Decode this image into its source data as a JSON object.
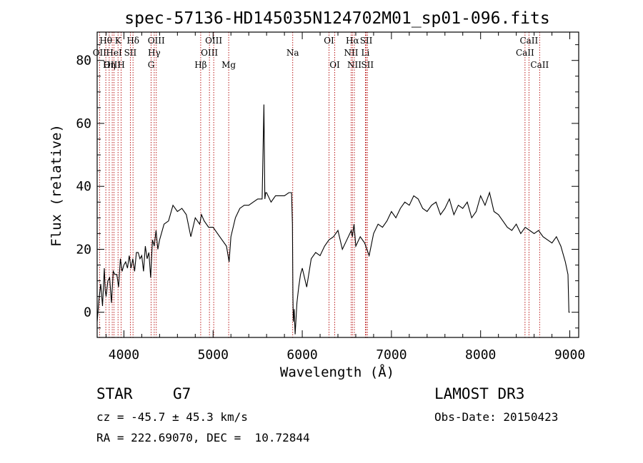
{
  "chart_data": {
    "type": "line",
    "title": "spec-57136-HD145035N124702M01_sp01-096.fits",
    "xlabel": "Wavelength (Å)",
    "ylabel": "Flux (relative)",
    "xlim": [
      3700,
      9100
    ],
    "ylim": [
      -8,
      89
    ],
    "x_ticks": [
      4000,
      5000,
      6000,
      7000,
      8000,
      9000
    ],
    "y_ticks": [
      0,
      20,
      40,
      60,
      80
    ],
    "series": [
      {
        "name": "spectrum",
        "x": [
          3700,
          3720,
          3740,
          3760,
          3780,
          3790,
          3800,
          3820,
          3840,
          3860,
          3880,
          3900,
          3920,
          3940,
          3960,
          3980,
          4000,
          4020,
          4040,
          4060,
          4080,
          4100,
          4120,
          4140,
          4160,
          4180,
          4200,
          4220,
          4240,
          4260,
          4280,
          4300,
          4320,
          4340,
          4360,
          4380,
          4400,
          4450,
          4500,
          4550,
          4600,
          4650,
          4700,
          4750,
          4800,
          4850,
          4870,
          4900,
          4950,
          5000,
          5050,
          5100,
          5150,
          5180,
          5200,
          5250,
          5300,
          5350,
          5400,
          5450,
          5500,
          5550,
          5570,
          5580,
          5590,
          5600,
          5650,
          5700,
          5750,
          5800,
          5850,
          5880,
          5890,
          5895,
          5900,
          5910,
          5920,
          5940,
          5960,
          5980,
          6000,
          6050,
          6100,
          6150,
          6200,
          6250,
          6300,
          6350,
          6400,
          6450,
          6500,
          6550,
          6563,
          6580,
          6600,
          6650,
          6700,
          6750,
          6800,
          6850,
          6900,
          6950,
          7000,
          7050,
          7100,
          7150,
          7200,
          7250,
          7300,
          7350,
          7400,
          7450,
          7500,
          7550,
          7600,
          7650,
          7700,
          7750,
          7800,
          7850,
          7900,
          7950,
          8000,
          8050,
          8100,
          8150,
          8200,
          8250,
          8300,
          8350,
          8400,
          8450,
          8500,
          8550,
          8600,
          8650,
          8700,
          8750,
          8800,
          8850,
          8900,
          8950,
          8980,
          8990,
          9000
        ],
        "y": [
          -3,
          4,
          9,
          2,
          14,
          7,
          5,
          10,
          11,
          3,
          13,
          12,
          12,
          8,
          17,
          13,
          15,
          16,
          14,
          18,
          14,
          17,
          13,
          19,
          19,
          17,
          18,
          13,
          21,
          17,
          19,
          11,
          23,
          21,
          26,
          20,
          23,
          28,
          29,
          34,
          32,
          33,
          31,
          24,
          30,
          28,
          31,
          29,
          27,
          27,
          25,
          23,
          21,
          16,
          24,
          30,
          33,
          34,
          34,
          35,
          36,
          36,
          66,
          36,
          38,
          38,
          35,
          37,
          37,
          37,
          38,
          38,
          28,
          5,
          -3,
          1,
          -7,
          3,
          8,
          12,
          14,
          8,
          17,
          19,
          18,
          21,
          23,
          24,
          26,
          20,
          23,
          26,
          24,
          28,
          21,
          24,
          22,
          18,
          25,
          28,
          27,
          29,
          32,
          30,
          33,
          35,
          34,
          37,
          36,
          33,
          32,
          34,
          35,
          31,
          33,
          36,
          31,
          34,
          33,
          35,
          30,
          32,
          37,
          34,
          38,
          32,
          31,
          29,
          27,
          26,
          28,
          25,
          27,
          26,
          25,
          26,
          24,
          23,
          22,
          24,
          21,
          16,
          12,
          0,
          0
        ]
      }
    ],
    "emission_lines": [
      {
        "label": "Hθ",
        "x": 3797,
        "row": 1
      },
      {
        "label": "OII",
        "x": 3727,
        "row": 2
      },
      {
        "label": "OIII",
        "x": 3869,
        "row": 3
      },
      {
        "label": "K",
        "x": 3934,
        "row": 1
      },
      {
        "label": "HeI",
        "x": 3889,
        "row": 2
      },
      {
        "label": "Hη",
        "x": 3835,
        "row": 3
      },
      {
        "label": "SII",
        "x": 4072,
        "row": 2
      },
      {
        "label": "H",
        "x": 3969,
        "row": 3
      },
      {
        "label": "Hδ",
        "x": 4102,
        "row": 1
      },
      {
        "label": "OIII",
        "x": 4363,
        "row": 1
      },
      {
        "label": "Hγ",
        "x": 4340,
        "row": 2
      },
      {
        "label": "G",
        "x": 4305,
        "row": 3
      },
      {
        "label": "Hβ",
        "x": 4861,
        "row": 3
      },
      {
        "label": "OIII",
        "x": 5007,
        "row": 1
      },
      {
        "label": "OIII",
        "x": 4959,
        "row": 2
      },
      {
        "label": "Mg",
        "x": 5175,
        "row": 3
      },
      {
        "label": "Na",
        "x": 5893,
        "row": 2
      },
      {
        "label": "OI",
        "x": 6300,
        "row": 1
      },
      {
        "label": "OI",
        "x": 6364,
        "row": 3
      },
      {
        "label": "Hα",
        "x": 6563,
        "row": 1
      },
      {
        "label": "SII",
        "x": 6717,
        "row": 1
      },
      {
        "label": "NII",
        "x": 6548,
        "row": 2
      },
      {
        "label": "Li",
        "x": 6708,
        "row": 2
      },
      {
        "label": "NII",
        "x": 6584,
        "row": 3
      },
      {
        "label": "SII",
        "x": 6731,
        "row": 3
      },
      {
        "label": "CaII",
        "x": 8542,
        "row": 1
      },
      {
        "label": "CaII",
        "x": 8498,
        "row": 2
      },
      {
        "label": "CaII",
        "x": 8662,
        "row": 3
      }
    ]
  },
  "info": {
    "object_class": "STAR",
    "subclass": "G7",
    "survey": "LAMOST DR3",
    "cz": "cz = -45.7 ± 45.3 km/s",
    "obs_date": "Obs-Date: 20150423",
    "coords": "RA = 222.69070, DEC =  10.72844"
  }
}
